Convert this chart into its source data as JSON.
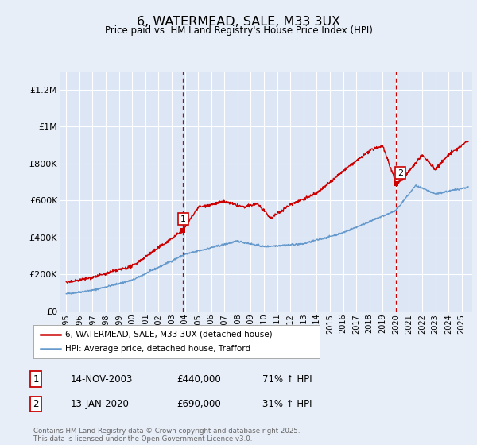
{
  "title": "6, WATERMEAD, SALE, M33 3UX",
  "subtitle": "Price paid vs. HM Land Registry's House Price Index (HPI)",
  "background_color": "#e8eef8",
  "plot_bg_color": "#dce6f5",
  "ylabel_ticks": [
    "£0",
    "£200K",
    "£400K",
    "£600K",
    "£800K",
    "£1M",
    "£1.2M"
  ],
  "ytick_values": [
    0,
    200000,
    400000,
    600000,
    800000,
    1000000,
    1200000
  ],
  "ylim": [
    0,
    1300000
  ],
  "xlim_start": 1994.5,
  "xlim_end": 2025.8,
  "sale1_date": 2003.87,
  "sale1_price": 440000,
  "sale1_label": "1",
  "sale2_date": 2020.04,
  "sale2_price": 690000,
  "sale2_label": "2",
  "legend_line1": "6, WATERMEAD, SALE, M33 3UX (detached house)",
  "legend_line2": "HPI: Average price, detached house, Trafford",
  "table_rows": [
    {
      "num": "1",
      "date": "14-NOV-2003",
      "price": "£440,000",
      "change": "71% ↑ HPI"
    },
    {
      "num": "2",
      "date": "13-JAN-2020",
      "price": "£690,000",
      "change": "31% ↑ HPI"
    }
  ],
  "footer": "Contains HM Land Registry data © Crown copyright and database right 2025.\nThis data is licensed under the Open Government Licence v3.0.",
  "red_color": "#cc0000",
  "blue_color": "#6699cc",
  "grid_color": "#ffffff",
  "vline_color": "#cc0000"
}
